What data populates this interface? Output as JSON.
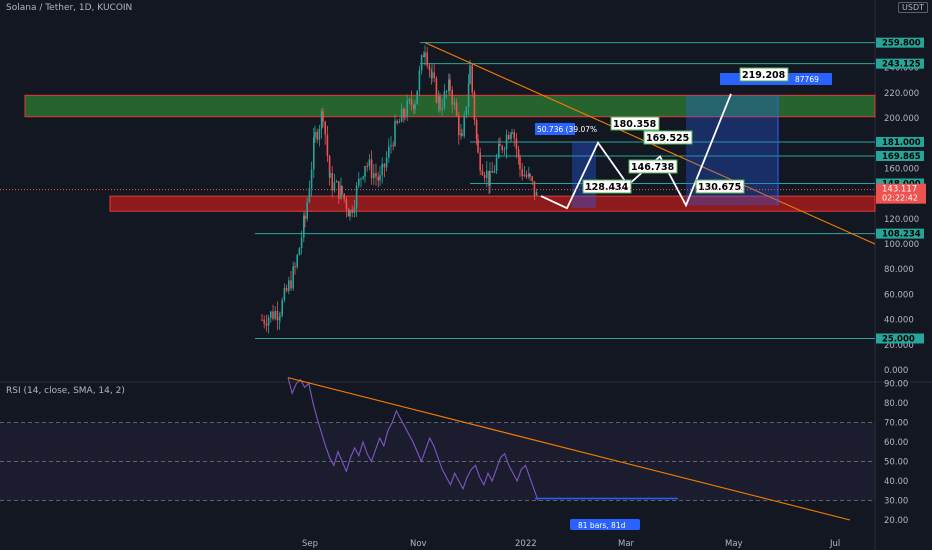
{
  "header": {
    "symbol_title": "Solana / Tether, 1D, KUCOIN",
    "currency_badge": "USDT",
    "rsi_title": "RSI (14, close, SMA, 14, 2)"
  },
  "colors": {
    "background": "#131722",
    "candle_up": "#26a69a",
    "candle_down": "#ef5350",
    "green_zone": "#2e7d32",
    "red_zone": "#b71c1c",
    "trendline": "#f57c00",
    "hline": "#26a69a",
    "rsi_line": "#7e57c2",
    "projection": "#ffffff",
    "measure_box": "#2962ff"
  },
  "chart_data": [
    {
      "type": "candlestick",
      "title": "Solana / Tether, 1D, KUCOIN",
      "x_axis": {
        "tick_labels": [
          "Sep",
          "Nov",
          "2022",
          "Mar",
          "May",
          "Jul"
        ]
      },
      "y_axis": {
        "tick_labels": [
          "0.000",
          "20.000",
          "40.000",
          "60.000",
          "80.000",
          "100.000",
          "120.000",
          "140.000",
          "160.000",
          "180.000",
          "200.000",
          "220.000",
          "240.000"
        ],
        "ylim": [
          0,
          250
        ]
      },
      "price_levels": [
        {
          "label": "259.800",
          "value": 259.8
        },
        {
          "label": "243.125",
          "value": 243.125
        },
        {
          "label": "181.000",
          "value": 181
        },
        {
          "label": "169.865",
          "value": 169.865
        },
        {
          "label": "148.000",
          "value": 148
        },
        {
          "label": "108.234",
          "value": 108.234
        },
        {
          "label": "25.000",
          "value": 25
        }
      ],
      "current_price": {
        "label": "143.117",
        "countdown": "02:22:42"
      },
      "zones": [
        {
          "name": "resistance",
          "from": 201,
          "to": 218
        },
        {
          "name": "support",
          "from": 126,
          "to": 138
        }
      ],
      "trendline": {
        "from": [
          "Nov",
          259.8
        ],
        "to": [
          "Jul",
          100
        ]
      },
      "projection_path": [
        {
          "value": 138,
          "label": ""
        },
        {
          "value": 128.434,
          "label": "128.434"
        },
        {
          "value": 180.358,
          "label": "180.358"
        },
        {
          "value": 146.738,
          "label": "146.738"
        },
        {
          "value": 169.525,
          "label": "169.525"
        },
        {
          "value": 130.675,
          "label": "130.675"
        },
        {
          "value": 219.208,
          "label": "219.208"
        }
      ],
      "measure_labels": [
        "50.736 (39.07%",
        "87769"
      ],
      "candles_summary": {
        "start": 40,
        "peak": 259.8,
        "end": 143.117
      }
    },
    {
      "type": "line",
      "title": "RSI (14, close, SMA, 14, 2)",
      "y_axis": {
        "tick_labels": [
          "20.00",
          "30.00",
          "40.00",
          "50.00",
          "60.00",
          "70.00",
          "80.00",
          "90.00"
        ],
        "ylim": [
          20,
          95
        ]
      },
      "band": {
        "upper": 70,
        "middle": 50,
        "lower": 30
      },
      "values": [
        93,
        85,
        90,
        92,
        88,
        90,
        80,
        72,
        65,
        58,
        52,
        48,
        55,
        50,
        45,
        52,
        57,
        53,
        60,
        54,
        50,
        56,
        62,
        58,
        66,
        70,
        76,
        72,
        68,
        64,
        60,
        55,
        50,
        56,
        62,
        58,
        52,
        46,
        42,
        38,
        44,
        40,
        36,
        42,
        46,
        48,
        42,
        38,
        44,
        40,
        46,
        52,
        54,
        48,
        44,
        40,
        46,
        48,
        42,
        36,
        30
      ],
      "trendline": {
        "from": 93,
        "to": 20
      },
      "measure": "81 bars, 81d"
    }
  ]
}
